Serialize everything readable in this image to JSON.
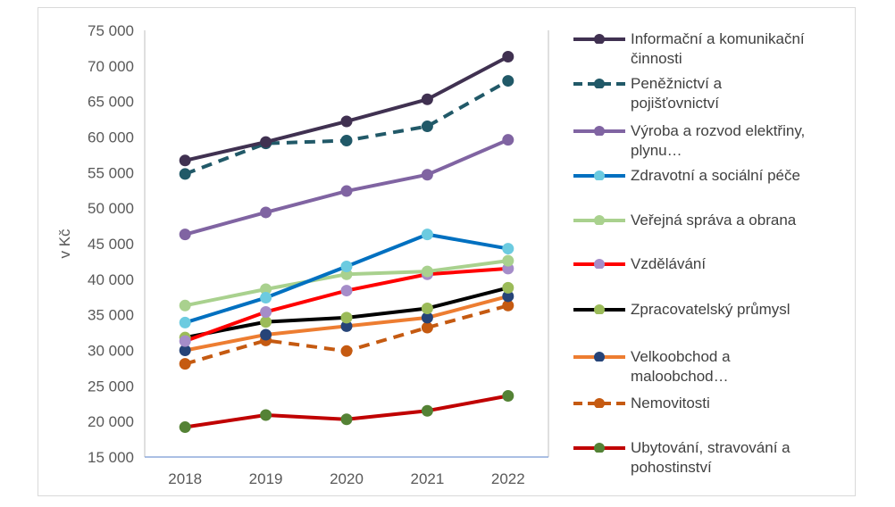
{
  "chart_data": {
    "type": "line",
    "title": "",
    "xlabel": "",
    "ylabel": "v Kč",
    "ylim": [
      15000,
      75000
    ],
    "yticks": [
      15000,
      20000,
      25000,
      30000,
      35000,
      40000,
      45000,
      50000,
      55000,
      60000,
      65000,
      70000,
      75000
    ],
    "ytick_labels": [
      "15 000",
      "20 000",
      "25 000",
      "30 000",
      "35 000",
      "40 000",
      "45 000",
      "50 000",
      "55 000",
      "60 000",
      "65 000",
      "70 000",
      "75 000"
    ],
    "categories": [
      "2018",
      "2019",
      "2020",
      "2021",
      "2022"
    ],
    "grid": false,
    "legend_position": "right",
    "series": [
      {
        "name": "Informační a komunikační činnosti",
        "color": "#403151",
        "marker_color": "#403151",
        "dashed": false,
        "values": [
          56700,
          59300,
          62200,
          65300,
          71300
        ]
      },
      {
        "name": "Peněžnictví a pojišťovnictví",
        "color": "#215968",
        "marker_color": "#215968",
        "dashed": true,
        "values": [
          54800,
          59100,
          59500,
          61500,
          67900
        ]
      },
      {
        "name": "Výroba a rozvod elektřiny, plynu…",
        "color": "#8064a2",
        "marker_color": "#8064a2",
        "dashed": false,
        "values": [
          46300,
          49400,
          52400,
          54700,
          59600
        ]
      },
      {
        "name": "Zdravotní a sociální péče",
        "color": "#0070c0",
        "marker_color": "#6ccbe0",
        "dashed": false,
        "values": [
          33900,
          37400,
          41800,
          46300,
          44300
        ]
      },
      {
        "name": "Veřejná správa a obrana",
        "color": "#a9d18e",
        "marker_color": "#a9d18e",
        "dashed": false,
        "values": [
          36300,
          38600,
          40700,
          41100,
          42600
        ]
      },
      {
        "name": "Vzdělávání",
        "color": "#ff0000",
        "marker_color": "#a58dc9",
        "dashed": false,
        "values": [
          31300,
          35400,
          38400,
          40700,
          41500
        ]
      },
      {
        "name": "Zpracovatelský průmysl",
        "color": "#000000",
        "marker_color": "#9bbb59",
        "dashed": false,
        "values": [
          31800,
          34000,
          34600,
          35900,
          38800
        ]
      },
      {
        "name": "Velkoobchod a maloobchod…",
        "color": "#ed7d31",
        "marker_color": "#264478",
        "dashed": false,
        "values": [
          30000,
          32200,
          33400,
          34600,
          37600
        ]
      },
      {
        "name": "Nemovitosti",
        "color": "#c55a11",
        "marker_color": "#c55a11",
        "dashed": true,
        "values": [
          28100,
          31400,
          29900,
          33200,
          36300
        ]
      },
      {
        "name": "Ubytování, stravování a pohostinství",
        "color": "#c00000",
        "marker_color": "#548235",
        "dashed": false,
        "values": [
          19200,
          20900,
          20300,
          21500,
          23600
        ]
      }
    ]
  },
  "legend_labels": [
    "Informační a komunikační\nčinnosti",
    "Peněžnictví a\npojišťovnictví",
    "Výroba a rozvod elektřiny,\nplynu…",
    "Zdravotní a sociální péče",
    "Veřejná správa a obrana",
    "Vzdělávání",
    "Zpracovatelský průmysl",
    "Velkoobchod a\nmaloobchod…",
    "Nemovitosti",
    "Ubytování, stravování a\npohostinství"
  ]
}
